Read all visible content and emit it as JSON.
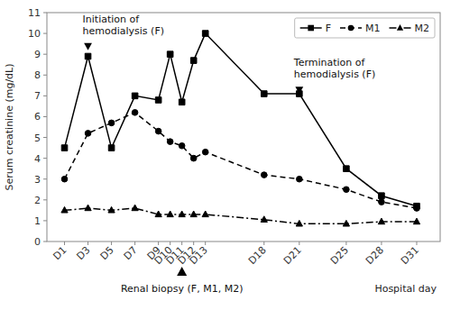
{
  "chart_data": {
    "type": "line",
    "x": [
      1,
      3,
      5,
      7,
      9,
      10,
      11,
      12,
      13,
      18,
      21,
      25,
      28,
      31
    ],
    "xlim": [
      -0.5,
      33
    ],
    "xticks": [
      {
        "value": 1,
        "label": "D1"
      },
      {
        "value": 3,
        "label": "D3"
      },
      {
        "value": 5,
        "label": "D5"
      },
      {
        "value": 7,
        "label": "D7"
      },
      {
        "value": 9,
        "label": "D9"
      },
      {
        "value": 10,
        "label": "D10"
      },
      {
        "value": 11,
        "label": "D11"
      },
      {
        "value": 12,
        "label": "D12"
      },
      {
        "value": 13,
        "label": "D13"
      },
      {
        "value": 18,
        "label": "D18"
      },
      {
        "value": 21,
        "label": "D21"
      },
      {
        "value": 25,
        "label": "D25"
      },
      {
        "value": 28,
        "label": "D28"
      },
      {
        "value": 31,
        "label": "D31"
      }
    ],
    "ylim": [
      0,
      11
    ],
    "yticks": [
      0,
      1,
      2,
      3,
      4,
      5,
      6,
      7,
      8,
      9,
      10,
      11
    ],
    "y_label": "Serum creatinine (mg/dL)",
    "x_label": "Hospital day",
    "grid": false,
    "legend": "upper right",
    "series": [
      {
        "name": "F",
        "color": "#000000",
        "marker": "square",
        "line_style": "solid",
        "values": [
          4.5,
          8.9,
          4.5,
          7.0,
          6.8,
          9.0,
          6.7,
          8.7,
          10.0,
          7.1,
          7.1,
          3.5,
          2.2,
          1.7
        ]
      },
      {
        "name": "M1",
        "color": "#000000",
        "marker": "circle",
        "line_style": "dashed",
        "values": [
          3.0,
          5.2,
          5.7,
          6.2,
          5.3,
          4.8,
          4.6,
          4.0,
          4.3,
          3.2,
          3.0,
          2.5,
          1.9,
          1.6
        ]
      },
      {
        "name": "M2",
        "color": "#000000",
        "marker": "triangle",
        "line_style": "dashdot",
        "values": [
          1.5,
          1.6,
          1.5,
          1.6,
          1.3,
          1.3,
          1.3,
          1.3,
          1.3,
          1.05,
          0.85,
          0.85,
          0.95,
          0.95
        ]
      }
    ],
    "annotations": [
      {
        "text": "Initiation of\nhemodialysis (F)",
        "x": 3,
        "y": 9.4
      },
      {
        "text": "Termination of\nhemodialysis (F)",
        "x": 21,
        "y": 7.3
      },
      {
        "text": "Renal biopsy (F, M1, M2)",
        "x": 11
      }
    ]
  }
}
